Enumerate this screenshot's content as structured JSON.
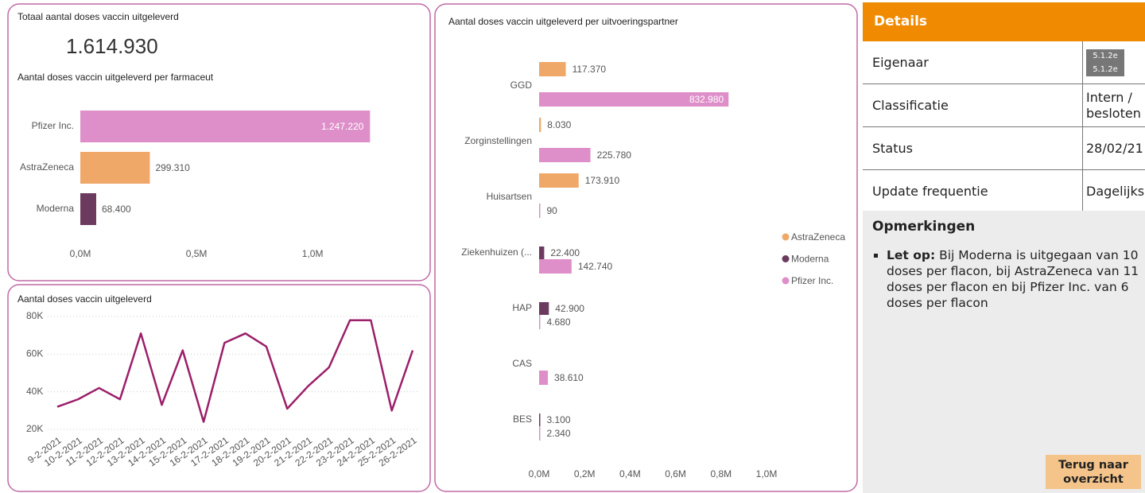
{
  "kpi": {
    "title": "Totaal aantal doses vaccin uitgeleverd",
    "value": "1.614.930"
  },
  "chart_data": [
    {
      "type": "hbar",
      "title": "Aantal doses vaccin uitgeleverd per farmaceut",
      "categories": [
        "Pfizer Inc.",
        "AstraZeneca",
        "Moderna"
      ],
      "values": [
        1247220,
        299310,
        68400
      ],
      "value_labels": [
        "1.247.220",
        "299.310",
        "68.400"
      ],
      "colors": [
        "#de8fc9",
        "#f0a868",
        "#6b3a5e"
      ],
      "xlim": [
        0,
        1400000
      ],
      "xticks": [
        {
          "value": 0,
          "label": "0,0M"
        },
        {
          "value": 500000,
          "label": "0,5M"
        },
        {
          "value": 1000000,
          "label": "1,0M"
        }
      ]
    },
    {
      "type": "line",
      "title": "Aantal doses vaccin uitgeleverd",
      "categories": [
        "9-2-2021",
        "10-2-2021",
        "11-2-2021",
        "12-2-2021",
        "13-2-2021",
        "14-2-2021",
        "15-2-2021",
        "16-2-2021",
        "17-2-2021",
        "18-2-2021",
        "19-2-2021",
        "20-2-2021",
        "21-2-2021",
        "22-2-2021",
        "23-2-2021",
        "24-2-2021",
        "25-2-2021",
        "26-2-2021"
      ],
      "values": [
        32000,
        36000,
        42000,
        36000,
        71000,
        33000,
        62000,
        24000,
        66000,
        71000,
        64000,
        31000,
        43000,
        53000,
        78000,
        78000,
        30000,
        62000
      ],
      "color": "#9b1f6a",
      "grid": true,
      "ylim": [
        20000,
        80000
      ],
      "yticks": [
        {
          "value": 20000,
          "label": "20K"
        },
        {
          "value": 40000,
          "label": "40K"
        },
        {
          "value": 60000,
          "label": "60K"
        },
        {
          "value": 80000,
          "label": "80K"
        }
      ]
    },
    {
      "type": "grouped_hbar",
      "title": "Aantal doses vaccin uitgeleverd per uitvoeringspartner",
      "categories": [
        "GGD",
        "Zorginstellingen",
        "Huisartsen",
        "Ziekenhuizen (...",
        "HAP",
        "CAS",
        "BES"
      ],
      "series": [
        {
          "name": "AstraZeneca",
          "color": "#f0a868",
          "values": [
            117370,
            8030,
            173910,
            null,
            null,
            null,
            null
          ],
          "value_labels": [
            "117.370",
            "8.030",
            "173.910",
            null,
            null,
            null,
            null
          ]
        },
        {
          "name": "Moderna",
          "color": "#6b3a5e",
          "values": [
            null,
            null,
            null,
            22400,
            42900,
            null,
            3100
          ],
          "value_labels": [
            null,
            null,
            null,
            "22.400",
            "42.900",
            null,
            "3.100"
          ]
        },
        {
          "name": "Pfizer Inc.",
          "color": "#de8fc9",
          "values": [
            832980,
            225780,
            90,
            142740,
            4680,
            38610,
            2340
          ],
          "value_labels": [
            "832.980",
            "225.780",
            "90",
            "142.740",
            "4.680",
            "38.610",
            "2.340"
          ]
        }
      ],
      "legend": "right",
      "xlim": [
        0,
        1000000
      ],
      "xticks": [
        {
          "value": 0,
          "label": "0,0M"
        },
        {
          "value": 200000,
          "label": "0,2M"
        },
        {
          "value": 400000,
          "label": "0,4M"
        },
        {
          "value": 600000,
          "label": "0,6M"
        },
        {
          "value": 800000,
          "label": "0,8M"
        },
        {
          "value": 1000000,
          "label": "1,0M"
        }
      ]
    }
  ],
  "details": {
    "title": "Details",
    "rows": [
      [
        "Eigenaar",
        "5.1.2e",
        "5.1.2e"
      ],
      [
        "Classificatie",
        "Intern / besloten"
      ],
      [
        "Status",
        "28/02/21"
      ],
      [
        "Update frequentie",
        "Dagelijks"
      ]
    ],
    "remarks": {
      "title": "Opmerkingen",
      "items": [
        {
          "bold": "Let op:",
          "text": "Bij Moderna is uitgegaan van 10 doses per flacon, bij AstraZeneca van 11 doses per flacon en bij Pfizer Inc. van 6 doses per flacon"
        }
      ]
    },
    "button": "Terug naar overzicht"
  }
}
